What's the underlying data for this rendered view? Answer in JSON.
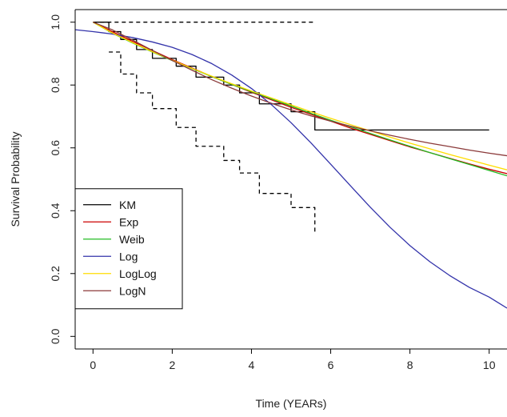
{
  "chart_data": {
    "type": "line",
    "title": "",
    "xlabel": "Time (YEARs)",
    "ylabel": "Survival Probability",
    "xlim": [
      -0.45,
      10.45
    ],
    "ylim": [
      -0.04,
      1.04
    ],
    "xticks": [
      0,
      2,
      4,
      6,
      8,
      10
    ],
    "xtick_labels": [
      "0",
      "2",
      "4",
      "6",
      "8",
      "10"
    ],
    "yticks": [
      0.0,
      0.2,
      0.4,
      0.6,
      0.8,
      1.0
    ],
    "ytick_labels": [
      "0.0",
      "0.2",
      "0.4",
      "0.6",
      "0.8",
      "1.0"
    ],
    "grid": false,
    "legend_position": "bottom-left",
    "series": [
      {
        "name": "KM",
        "color": "#000000",
        "style": "step",
        "x": [
          0,
          0.4,
          0.7,
          1.1,
          1.5,
          2.1,
          2.6,
          3.3,
          3.7,
          4.2,
          5.0,
          5.6,
          10.0
        ],
        "y": [
          1.0,
          0.97,
          0.945,
          0.913,
          0.885,
          0.86,
          0.825,
          0.8,
          0.775,
          0.74,
          0.715,
          0.657,
          0.657
        ]
      },
      {
        "name": "KM upper 95% CI",
        "color": "#000000",
        "style": "dashed-step",
        "x": [
          0,
          5.6
        ],
        "y": [
          1.0,
          1.0
        ]
      },
      {
        "name": "KM lower 95% CI",
        "color": "#000000",
        "style": "dashed-step",
        "x": [
          0.4,
          0.7,
          1.1,
          1.5,
          2.1,
          2.6,
          3.3,
          3.7,
          4.2,
          5.0,
          5.6
        ],
        "y": [
          0.905,
          0.835,
          0.775,
          0.725,
          0.665,
          0.605,
          0.56,
          0.52,
          0.455,
          0.41,
          0.33
        ]
      },
      {
        "name": "Exp",
        "color": "#cc0000",
        "style": "line",
        "x": [
          0.0,
          0.5,
          1.0,
          1.5,
          2.0,
          2.5,
          3.0,
          3.5,
          4.0,
          4.5,
          5.0,
          5.5,
          6.0,
          6.5,
          7.0,
          7.5,
          8.0,
          8.5,
          9.0,
          9.5,
          10.0,
          10.45
        ],
        "y": [
          1.0,
          0.969,
          0.939,
          0.91,
          0.881,
          0.854,
          0.827,
          0.802,
          0.777,
          0.753,
          0.729,
          0.707,
          0.685,
          0.663,
          0.643,
          0.623,
          0.603,
          0.585,
          0.567,
          0.549,
          0.532,
          0.518
        ]
      },
      {
        "name": "Weib",
        "color": "#22bb22",
        "style": "line",
        "x": [
          0.0,
          0.5,
          1.0,
          1.5,
          2.0,
          2.5,
          3.0,
          3.5,
          4.0,
          4.5,
          5.0,
          5.5,
          6.0,
          6.5,
          7.0,
          7.5,
          8.0,
          8.5,
          9.0,
          9.5,
          10.0,
          10.45
        ],
        "y": [
          1.0,
          0.964,
          0.934,
          0.905,
          0.878,
          0.852,
          0.827,
          0.802,
          0.779,
          0.756,
          0.733,
          0.71,
          0.688,
          0.667,
          0.646,
          0.625,
          0.605,
          0.585,
          0.566,
          0.547,
          0.528,
          0.511
        ]
      },
      {
        "name": "Log",
        "color": "#3333aa",
        "style": "line",
        "x": [
          -0.45,
          0.0,
          0.5,
          1.0,
          1.5,
          2.0,
          2.5,
          3.0,
          3.5,
          4.0,
          4.5,
          5.0,
          5.5,
          6.0,
          6.5,
          7.0,
          7.5,
          8.0,
          8.5,
          9.0,
          9.5,
          10.0,
          10.45
        ],
        "y": [
          0.976,
          0.97,
          0.962,
          0.951,
          0.937,
          0.92,
          0.897,
          0.868,
          0.832,
          0.789,
          0.738,
          0.68,
          0.616,
          0.548,
          0.479,
          0.411,
          0.347,
          0.289,
          0.238,
          0.194,
          0.156,
          0.125,
          0.09
        ]
      },
      {
        "name": "LogLog",
        "color": "#ffdd00",
        "style": "line",
        "x": [
          0.0,
          0.5,
          1.0,
          1.5,
          2.0,
          2.5,
          3.0,
          3.5,
          4.0,
          4.5,
          5.0,
          5.5,
          6.0,
          6.5,
          7.0,
          7.5,
          8.0,
          8.5,
          9.0,
          9.5,
          10.0,
          10.45
        ],
        "y": [
          1.0,
          0.965,
          0.935,
          0.906,
          0.879,
          0.853,
          0.828,
          0.804,
          0.781,
          0.759,
          0.737,
          0.715,
          0.694,
          0.674,
          0.654,
          0.634,
          0.615,
          0.597,
          0.579,
          0.562,
          0.545,
          0.53
        ]
      },
      {
        "name": "LogN",
        "color": "#8b3a3a",
        "style": "line",
        "x": [
          0.0,
          0.5,
          1.0,
          1.5,
          2.0,
          2.5,
          3.0,
          3.5,
          4.0,
          4.5,
          5.0,
          5.5,
          6.0,
          6.5,
          7.0,
          7.5,
          8.0,
          8.5,
          9.0,
          9.5,
          10.0,
          10.45
        ],
        "y": [
          1.0,
          0.975,
          0.943,
          0.91,
          0.878,
          0.847,
          0.817,
          0.79,
          0.765,
          0.742,
          0.721,
          0.702,
          0.685,
          0.669,
          0.654,
          0.64,
          0.627,
          0.615,
          0.604,
          0.593,
          0.583,
          0.575
        ]
      }
    ],
    "legend": [
      {
        "label": "KM",
        "color": "#000000"
      },
      {
        "label": "Exp",
        "color": "#cc0000"
      },
      {
        "label": "Weib",
        "color": "#22bb22"
      },
      {
        "label": "Log",
        "color": "#3333aa"
      },
      {
        "label": "LogLog",
        "color": "#ffdd00"
      },
      {
        "label": "LogN",
        "color": "#8b3a3a"
      }
    ]
  }
}
